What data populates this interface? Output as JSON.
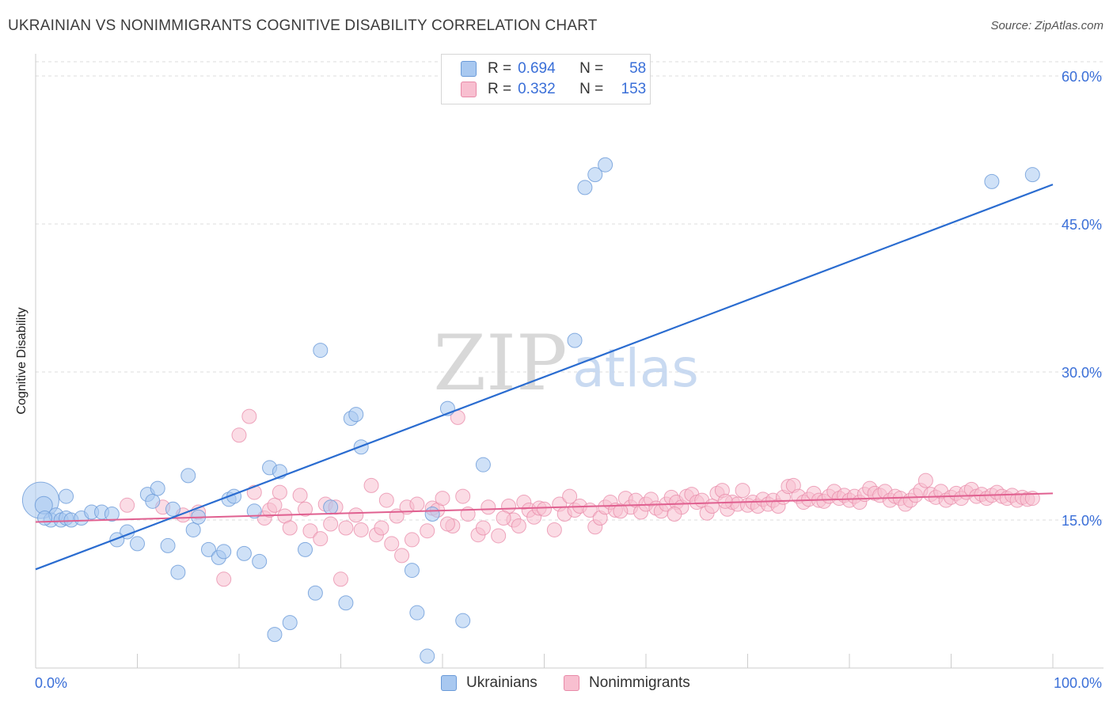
{
  "title": "UKRAINIAN VS NONIMMIGRANTS COGNITIVE DISABILITY CORRELATION CHART",
  "source": "Source: ZipAtlas.com",
  "watermark": {
    "zip": "ZIP",
    "atlas": "atlas"
  },
  "legend": {
    "rows": [
      {
        "r_label": "R =",
        "r_value": "0.694",
        "n_label": "N =",
        "n_value": "58",
        "color": "#a8c8f0",
        "border": "#6a9ad8"
      },
      {
        "r_label": "R =",
        "r_value": "0.332",
        "n_label": "N =",
        "n_value": "153",
        "color": "#f8bfd0",
        "border": "#e88aa8"
      }
    ]
  },
  "bottom_legend": [
    {
      "label": "Ukrainians",
      "color": "#a8c8f0",
      "border": "#6a9ad8"
    },
    {
      "label": "Nonimmigrants",
      "color": "#f8bfd0",
      "border": "#e88aa8"
    }
  ],
  "chart_data": {
    "type": "scatter",
    "title": "UKRAINIAN VS NONIMMIGRANTS COGNITIVE DISABILITY CORRELATION CHART",
    "xlabel": "",
    "ylabel": "Cognitive Disability",
    "xlim": [
      0,
      100
    ],
    "ylim": [
      0,
      60
    ],
    "x_tick_labels": [
      "0.0%",
      "100.0%"
    ],
    "y_ticks": [
      15,
      30,
      45,
      60
    ],
    "y_tick_labels": [
      "15.0%",
      "30.0%",
      "45.0%",
      "60.0%"
    ],
    "grid": "horizontal dashed",
    "series": [
      {
        "name": "Ukrainians",
        "color": "#6a9ad8",
        "fill": "#a8c8f0",
        "trend": {
          "x": [
            0,
            100
          ],
          "y": [
            10.0,
            49.0
          ],
          "color": "#2a6cd0"
        },
        "points": [
          [
            0.5,
            17.0
          ],
          [
            0.8,
            16.5
          ],
          [
            1.5,
            15.0
          ],
          [
            2.0,
            15.5
          ],
          [
            2.5,
            15.0
          ],
          [
            3.0,
            15.2
          ],
          [
            3.5,
            15.0
          ],
          [
            4.5,
            15.2
          ],
          [
            5.5,
            15.8
          ],
          [
            6.5,
            15.8
          ],
          [
            7.5,
            15.6
          ],
          [
            9.0,
            13.8
          ],
          [
            10.0,
            12.6
          ],
          [
            11.0,
            17.6
          ],
          [
            11.5,
            16.9
          ],
          [
            12.0,
            18.2
          ],
          [
            13.0,
            12.4
          ],
          [
            13.5,
            16.1
          ],
          [
            14.0,
            9.7
          ],
          [
            15.0,
            19.5
          ],
          [
            15.5,
            14.0
          ],
          [
            16.0,
            15.3
          ],
          [
            17.0,
            12.0
          ],
          [
            18.0,
            11.2
          ],
          [
            18.5,
            11.8
          ],
          [
            19.0,
            17.1
          ],
          [
            19.5,
            17.4
          ],
          [
            20.5,
            11.6
          ],
          [
            21.5,
            15.9
          ],
          [
            22.0,
            10.8
          ],
          [
            23.0,
            20.3
          ],
          [
            23.5,
            3.4
          ],
          [
            24.0,
            19.9
          ],
          [
            25.0,
            4.6
          ],
          [
            26.5,
            12.0
          ],
          [
            27.5,
            7.6
          ],
          [
            28.0,
            32.2
          ],
          [
            29.0,
            16.3
          ],
          [
            30.5,
            6.6
          ],
          [
            31.0,
            25.3
          ],
          [
            31.5,
            25.7
          ],
          [
            32.0,
            22.4
          ],
          [
            37.0,
            9.9
          ],
          [
            37.5,
            5.6
          ],
          [
            38.5,
            1.2
          ],
          [
            39.0,
            15.6
          ],
          [
            40.5,
            26.3
          ],
          [
            42.0,
            4.8
          ],
          [
            44.0,
            20.6
          ],
          [
            53.0,
            33.2
          ],
          [
            54.0,
            48.7
          ],
          [
            55.0,
            50.0
          ],
          [
            56.0,
            51.0
          ],
          [
            94.0,
            49.3
          ],
          [
            98.0,
            50.0
          ],
          [
            3.0,
            17.4
          ],
          [
            0.9,
            15.2
          ],
          [
            8.0,
            13.0
          ]
        ],
        "point_sizes": [
          24,
          12,
          10,
          10,
          10,
          10,
          10,
          10,
          10,
          10,
          10,
          10,
          10,
          10,
          10,
          10,
          10,
          10,
          10,
          10,
          10,
          10,
          10,
          10,
          10,
          10,
          10,
          10,
          10,
          10,
          10,
          10,
          10,
          10,
          10,
          10,
          10,
          10,
          10,
          10,
          10,
          10,
          10,
          10,
          10,
          10,
          10,
          10,
          10,
          10,
          10,
          10,
          10,
          10,
          10,
          10,
          10,
          10
        ]
      },
      {
        "name": "Nonimmigrants",
        "color": "#e88aa8",
        "fill": "#f8bfd0",
        "trend": {
          "x": [
            0,
            100
          ],
          "y": [
            14.8,
            17.7
          ],
          "color": "#e06090"
        },
        "points": [
          [
            9.0,
            16.5
          ],
          [
            12.5,
            16.3
          ],
          [
            18.5,
            9.0
          ],
          [
            20.0,
            23.6
          ],
          [
            21.0,
            25.5
          ],
          [
            21.5,
            17.8
          ],
          [
            22.5,
            15.2
          ],
          [
            23.0,
            16.0
          ],
          [
            23.5,
            16.5
          ],
          [
            24.0,
            17.8
          ],
          [
            24.5,
            15.4
          ],
          [
            25.0,
            14.2
          ],
          [
            26.0,
            17.5
          ],
          [
            27.0,
            13.9
          ],
          [
            28.0,
            13.1
          ],
          [
            28.5,
            16.6
          ],
          [
            29.0,
            14.6
          ],
          [
            29.5,
            16.3
          ],
          [
            30.0,
            9.0
          ],
          [
            30.5,
            14.2
          ],
          [
            31.5,
            15.5
          ],
          [
            32.0,
            14.0
          ],
          [
            33.0,
            18.5
          ],
          [
            33.5,
            13.5
          ],
          [
            34.0,
            14.2
          ],
          [
            35.0,
            12.6
          ],
          [
            35.5,
            15.4
          ],
          [
            36.0,
            11.4
          ],
          [
            36.5,
            16.3
          ],
          [
            37.0,
            13.0
          ],
          [
            37.5,
            16.6
          ],
          [
            38.5,
            13.9
          ],
          [
            39.0,
            16.2
          ],
          [
            39.5,
            16.0
          ],
          [
            40.0,
            17.2
          ],
          [
            41.0,
            14.4
          ],
          [
            41.5,
            25.4
          ],
          [
            42.0,
            17.4
          ],
          [
            42.5,
            15.6
          ],
          [
            43.5,
            13.5
          ],
          [
            44.0,
            14.2
          ],
          [
            44.5,
            16.3
          ],
          [
            45.5,
            13.4
          ],
          [
            46.5,
            16.4
          ],
          [
            47.0,
            15.0
          ],
          [
            47.5,
            14.4
          ],
          [
            48.0,
            16.8
          ],
          [
            48.5,
            16.0
          ],
          [
            49.0,
            15.3
          ],
          [
            49.5,
            16.2
          ],
          [
            50.0,
            16.1
          ],
          [
            51.0,
            14.0
          ],
          [
            51.5,
            16.6
          ],
          [
            52.0,
            15.6
          ],
          [
            53.0,
            16.0
          ],
          [
            53.5,
            16.4
          ],
          [
            54.5,
            16.0
          ],
          [
            55.0,
            14.3
          ],
          [
            55.5,
            15.2
          ],
          [
            56.0,
            16.3
          ],
          [
            56.5,
            16.8
          ],
          [
            57.0,
            16.0
          ],
          [
            58.0,
            17.2
          ],
          [
            58.5,
            16.3
          ],
          [
            59.0,
            17.0
          ],
          [
            59.5,
            15.8
          ],
          [
            60.0,
            16.6
          ],
          [
            60.5,
            17.1
          ],
          [
            61.0,
            16.2
          ],
          [
            61.5,
            15.9
          ],
          [
            62.0,
            16.6
          ],
          [
            62.5,
            17.3
          ],
          [
            63.0,
            16.8
          ],
          [
            63.5,
            16.3
          ],
          [
            64.0,
            17.4
          ],
          [
            64.5,
            17.6
          ],
          [
            65.0,
            16.8
          ],
          [
            65.5,
            17.0
          ],
          [
            66.0,
            15.7
          ],
          [
            66.5,
            16.4
          ],
          [
            67.0,
            17.7
          ],
          [
            67.5,
            18.0
          ],
          [
            68.0,
            16.1
          ],
          [
            68.5,
            16.8
          ],
          [
            69.0,
            16.6
          ],
          [
            69.5,
            18.0
          ],
          [
            70.0,
            16.5
          ],
          [
            70.5,
            16.8
          ],
          [
            71.0,
            16.4
          ],
          [
            71.5,
            17.1
          ],
          [
            72.0,
            16.6
          ],
          [
            72.5,
            17.0
          ],
          [
            73.0,
            16.4
          ],
          [
            73.5,
            17.3
          ],
          [
            74.0,
            18.4
          ],
          [
            74.5,
            18.5
          ],
          [
            75.0,
            17.4
          ],
          [
            75.5,
            16.8
          ],
          [
            76.0,
            17.1
          ],
          [
            76.5,
            17.7
          ],
          [
            77.0,
            17.0
          ],
          [
            77.5,
            16.9
          ],
          [
            78.0,
            17.4
          ],
          [
            78.5,
            17.9
          ],
          [
            79.0,
            17.2
          ],
          [
            79.5,
            17.5
          ],
          [
            80.0,
            17.0
          ],
          [
            80.5,
            17.4
          ],
          [
            81.0,
            16.8
          ],
          [
            81.5,
            17.6
          ],
          [
            82.0,
            18.2
          ],
          [
            82.5,
            17.7
          ],
          [
            83.0,
            17.5
          ],
          [
            83.5,
            17.9
          ],
          [
            84.0,
            17.0
          ],
          [
            84.5,
            17.4
          ],
          [
            85.0,
            17.2
          ],
          [
            85.5,
            16.6
          ],
          [
            86.0,
            17.0
          ],
          [
            86.5,
            17.5
          ],
          [
            87.0,
            18.0
          ],
          [
            87.5,
            19.0
          ],
          [
            88.0,
            17.6
          ],
          [
            88.5,
            17.3
          ],
          [
            89.0,
            17.9
          ],
          [
            89.5,
            17.0
          ],
          [
            90.0,
            17.3
          ],
          [
            90.5,
            17.7
          ],
          [
            91.0,
            17.2
          ],
          [
            91.5,
            17.8
          ],
          [
            92.0,
            18.1
          ],
          [
            92.5,
            17.4
          ],
          [
            93.0,
            17.6
          ],
          [
            93.5,
            17.2
          ],
          [
            94.0,
            17.5
          ],
          [
            94.5,
            17.8
          ],
          [
            95.0,
            17.4
          ],
          [
            95.5,
            17.2
          ],
          [
            96.0,
            17.5
          ],
          [
            96.5,
            17.0
          ],
          [
            97.0,
            17.3
          ],
          [
            97.5,
            17.1
          ],
          [
            98.0,
            17.2
          ],
          [
            14.5,
            15.5
          ],
          [
            16.0,
            15.8
          ],
          [
            26.5,
            16.1
          ],
          [
            34.5,
            17.0
          ],
          [
            40.5,
            14.6
          ],
          [
            46.0,
            15.2
          ],
          [
            52.5,
            17.4
          ],
          [
            57.5,
            15.9
          ],
          [
            62.8,
            15.6
          ],
          [
            67.8,
            16.9
          ]
        ]
      }
    ]
  }
}
